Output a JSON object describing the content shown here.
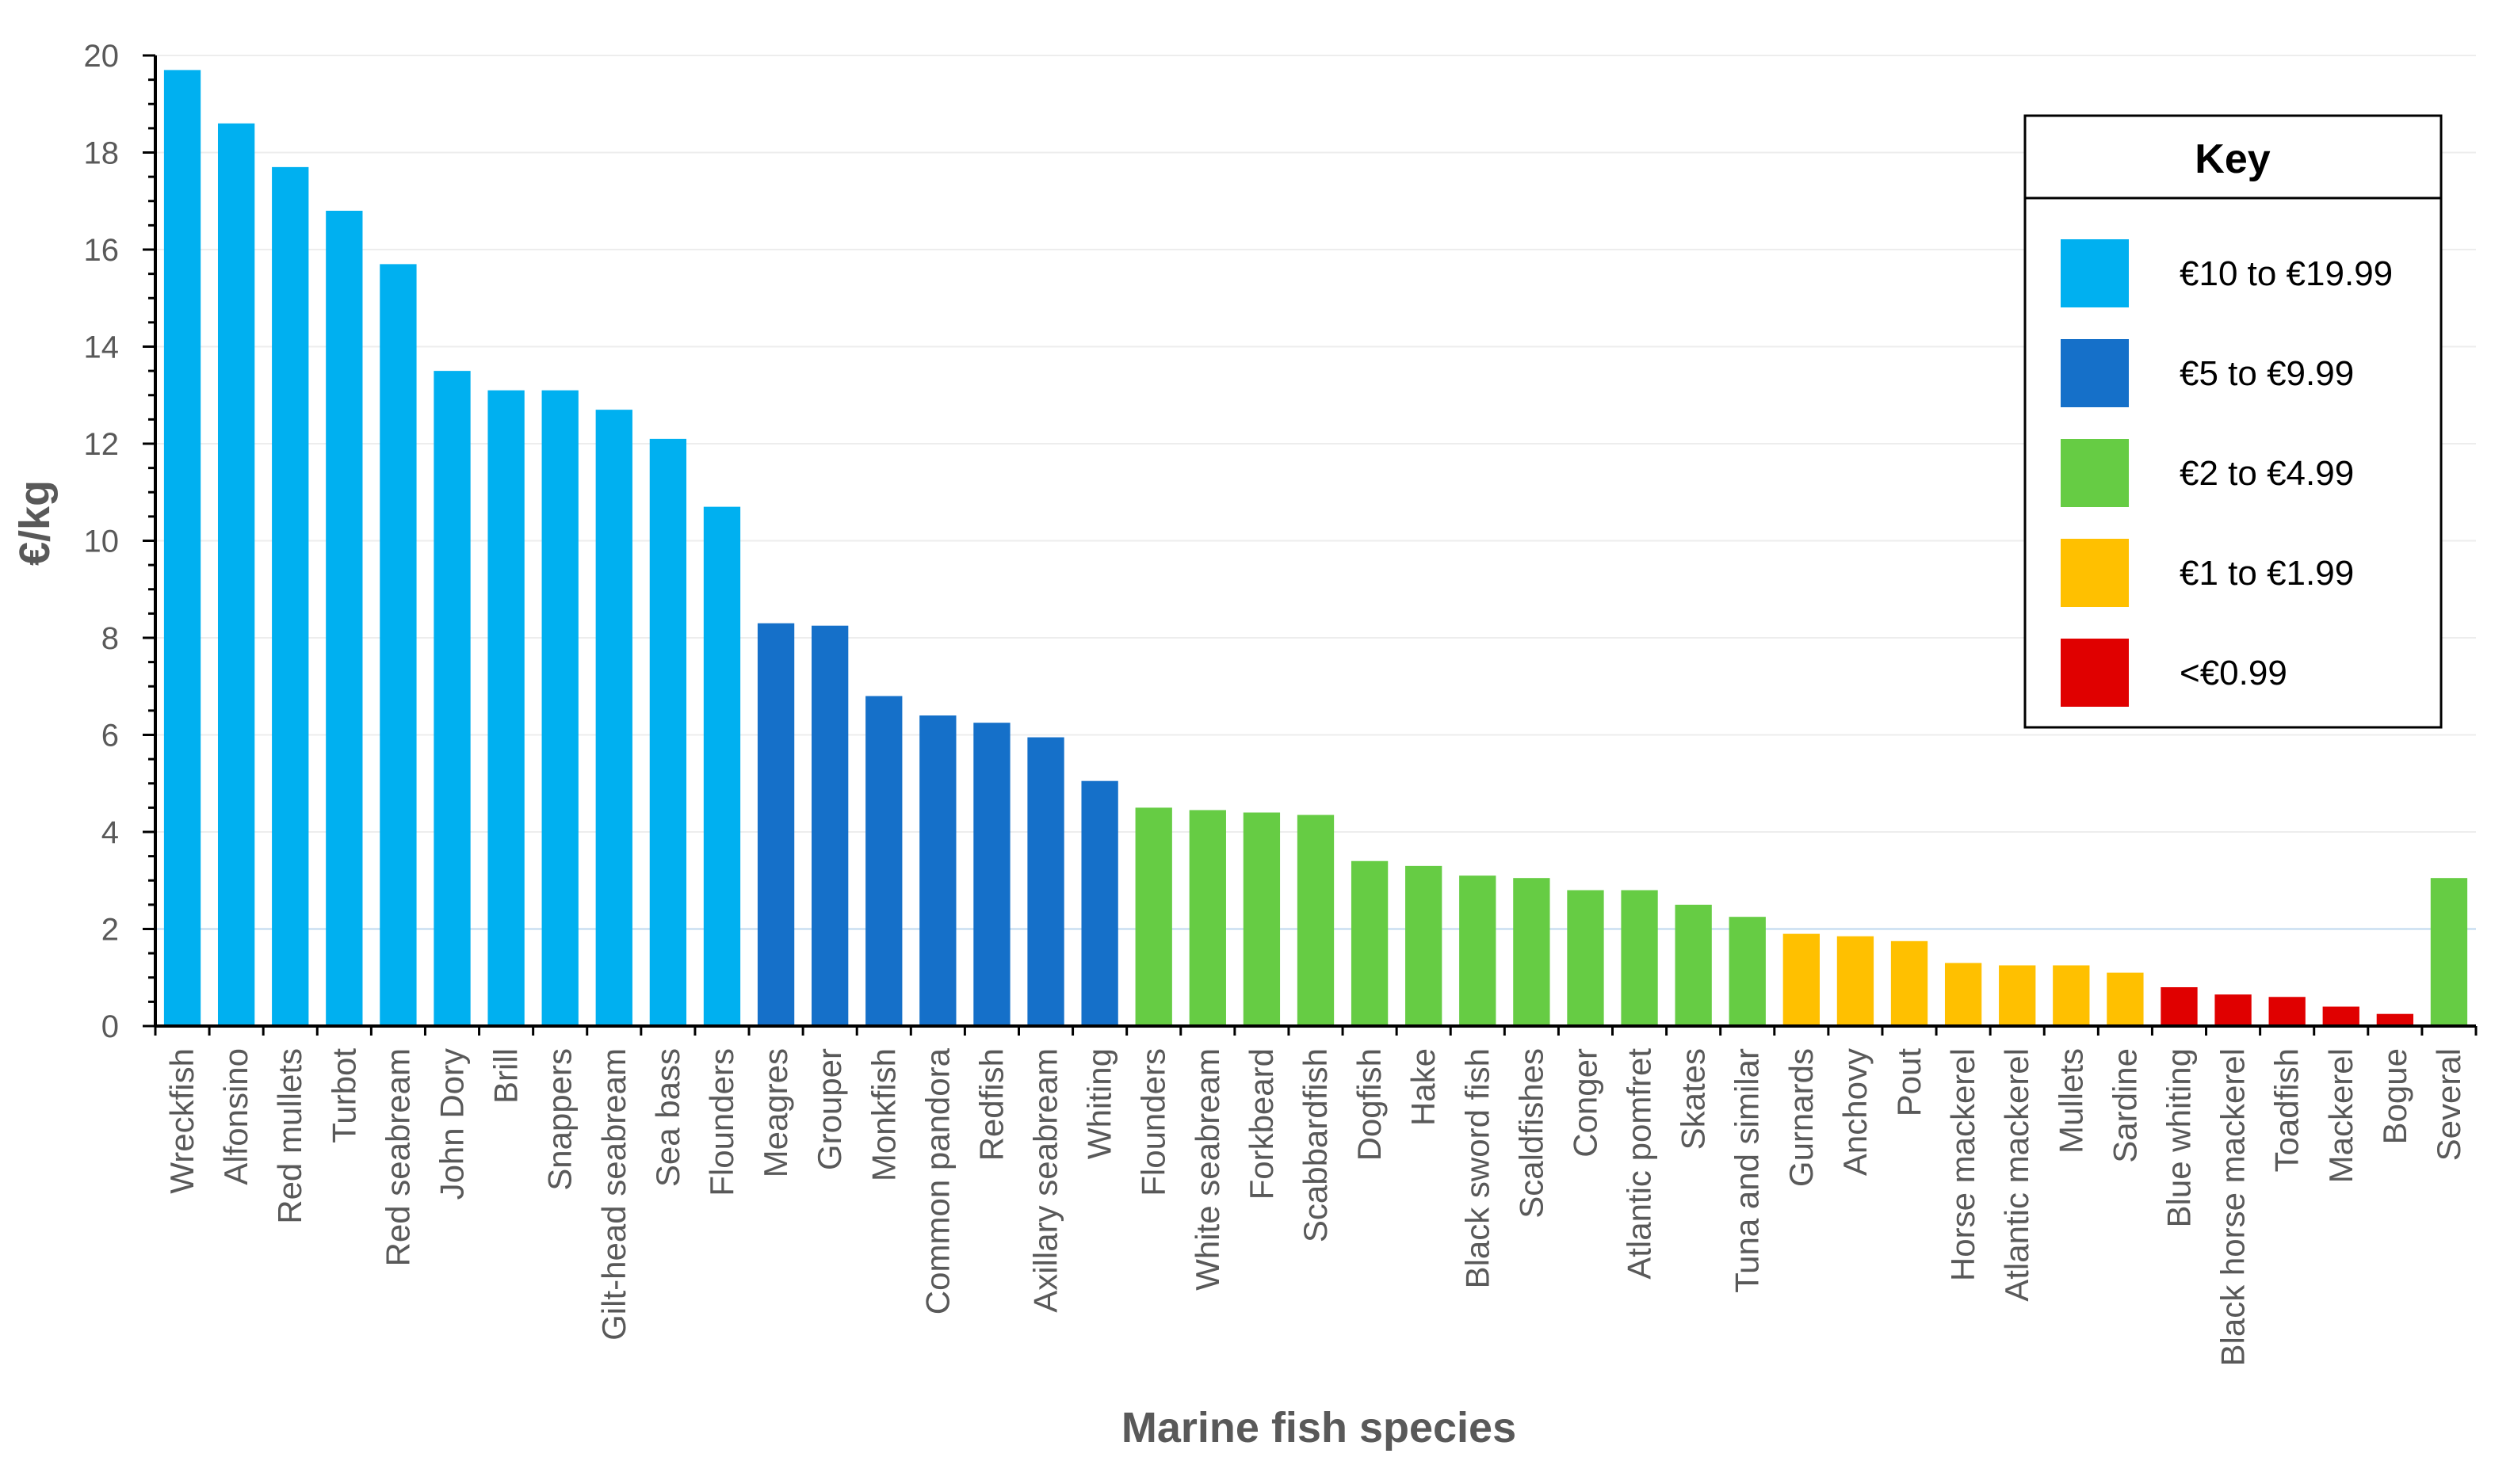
{
  "chart_data": {
    "type": "bar",
    "title": "",
    "xlabel": "Marine fish species",
    "ylabel": "€/kg",
    "ylim": [
      0,
      20
    ],
    "yticks": [
      0,
      2,
      4,
      6,
      8,
      10,
      12,
      14,
      16,
      18,
      20
    ],
    "grid": true,
    "legend_position": "top-right",
    "categories": [
      "Wreckfish",
      "Alfonsino",
      "Red mullets",
      "Turbot",
      "Red seabream",
      "John Dory",
      "Brill",
      "Snappers",
      "Gilt-head seabream",
      "Sea bass",
      "Flounders",
      "Meagres",
      "Grouper",
      "Monkfish",
      "Common pandora",
      "Redfish",
      "Axillary seabream",
      "Whiting",
      "Flounders",
      "White seabream",
      "Forkbeard",
      "Scabbardfish",
      "Dogfish",
      "Hake",
      "Black sword fish",
      "Scaldfishes",
      "Conger",
      "Atlantic pomfret",
      "Skates",
      "Tuna and similar",
      "Gurnards",
      "Anchovy",
      "Pout",
      "Horse mackerel",
      "Atlantic mackerel",
      "Mullets",
      "Sardine",
      "Blue whiting",
      "Black horse mackerel",
      "Toadfish",
      "Mackerel",
      "Bogue",
      "Several"
    ],
    "values": [
      19.7,
      18.6,
      17.7,
      16.8,
      15.7,
      13.5,
      13.1,
      13.1,
      12.7,
      12.1,
      10.7,
      8.3,
      8.25,
      6.8,
      6.4,
      6.25,
      5.95,
      5.05,
      4.5,
      4.45,
      4.4,
      4.35,
      3.4,
      3.3,
      3.1,
      3.05,
      2.8,
      2.8,
      2.5,
      2.25,
      1.9,
      1.85,
      1.75,
      1.3,
      1.25,
      1.25,
      1.1,
      0.8,
      0.65,
      0.6,
      0.4,
      0.25,
      3.05
    ],
    "categories_color_group": [
      0,
      0,
      0,
      0,
      0,
      0,
      0,
      0,
      0,
      0,
      0,
      1,
      1,
      1,
      1,
      1,
      1,
      1,
      2,
      2,
      2,
      2,
      2,
      2,
      2,
      2,
      2,
      2,
      2,
      2,
      3,
      3,
      3,
      3,
      3,
      3,
      3,
      4,
      4,
      4,
      4,
      4,
      2
    ],
    "legend": {
      "title": "Key",
      "entries": [
        {
          "label": "€10 to €19.99",
          "color": "#00B0F0"
        },
        {
          "label": "€5 to €9.99",
          "color": "#1570C9"
        },
        {
          "label": "€2 to €4.99",
          "color": "#66CC44"
        },
        {
          "label": "€1 to €1.99",
          "color": "#FFC000"
        },
        {
          "label": "<€0.99",
          "color": "#E00000"
        }
      ]
    }
  }
}
